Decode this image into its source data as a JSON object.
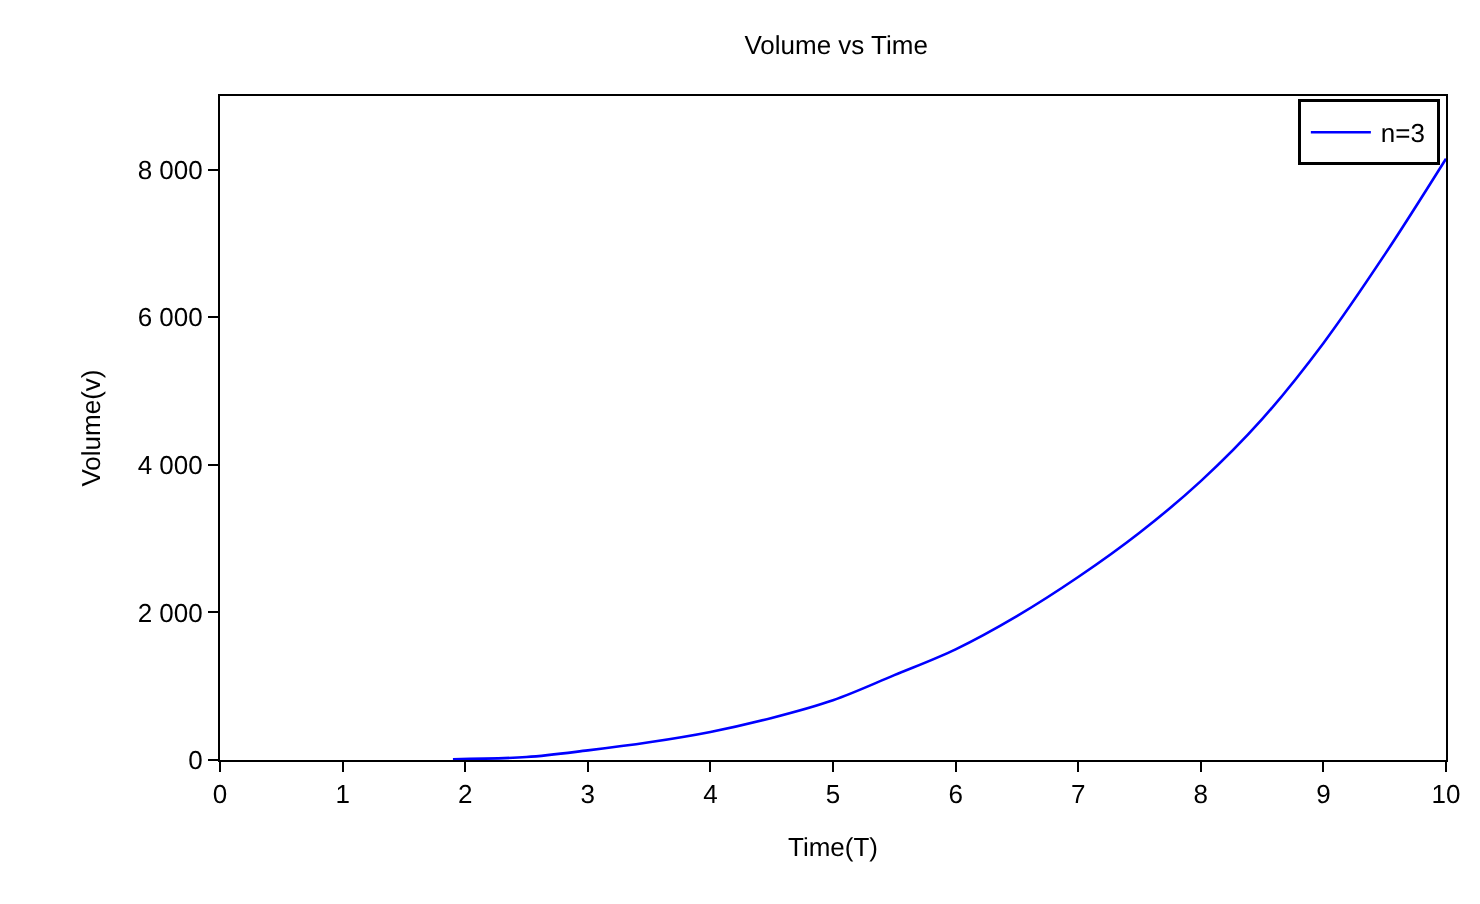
{
  "chart_data": {
    "type": "line",
    "title": "Volume vs Time",
    "xlabel": "Time(T)",
    "ylabel": "Volume(v)",
    "x": [
      1.9,
      2.5,
      3.0,
      3.5,
      4.0,
      4.5,
      5.0,
      5.5,
      6.0,
      6.5,
      7.0,
      7.5,
      8.0,
      8.5,
      9.0,
      9.5,
      10.0
    ],
    "series": [
      {
        "name": "n=3",
        "color": "#0000ff",
        "values": [
          10,
          40,
          130,
          240,
          380,
          570,
          810,
          1150,
          1500,
          1950,
          2480,
          3080,
          3780,
          4620,
          5650,
          6850,
          8150
        ]
      }
    ],
    "xlim": [
      0,
      10
    ],
    "xticks": [
      0,
      1,
      2,
      3,
      4,
      5,
      6,
      7,
      8,
      9,
      10
    ],
    "ylim": [
      0,
      9000
    ],
    "yticks": [
      {
        "value": 0,
        "label": "0"
      },
      {
        "value": 2000,
        "label": "2 000"
      },
      {
        "value": 4000,
        "label": "4 000"
      },
      {
        "value": 6000,
        "label": "6 000"
      },
      {
        "value": 8000,
        "label": "8 000"
      }
    ],
    "legend": "top right",
    "marker": "none",
    "line_style": "solid"
  }
}
